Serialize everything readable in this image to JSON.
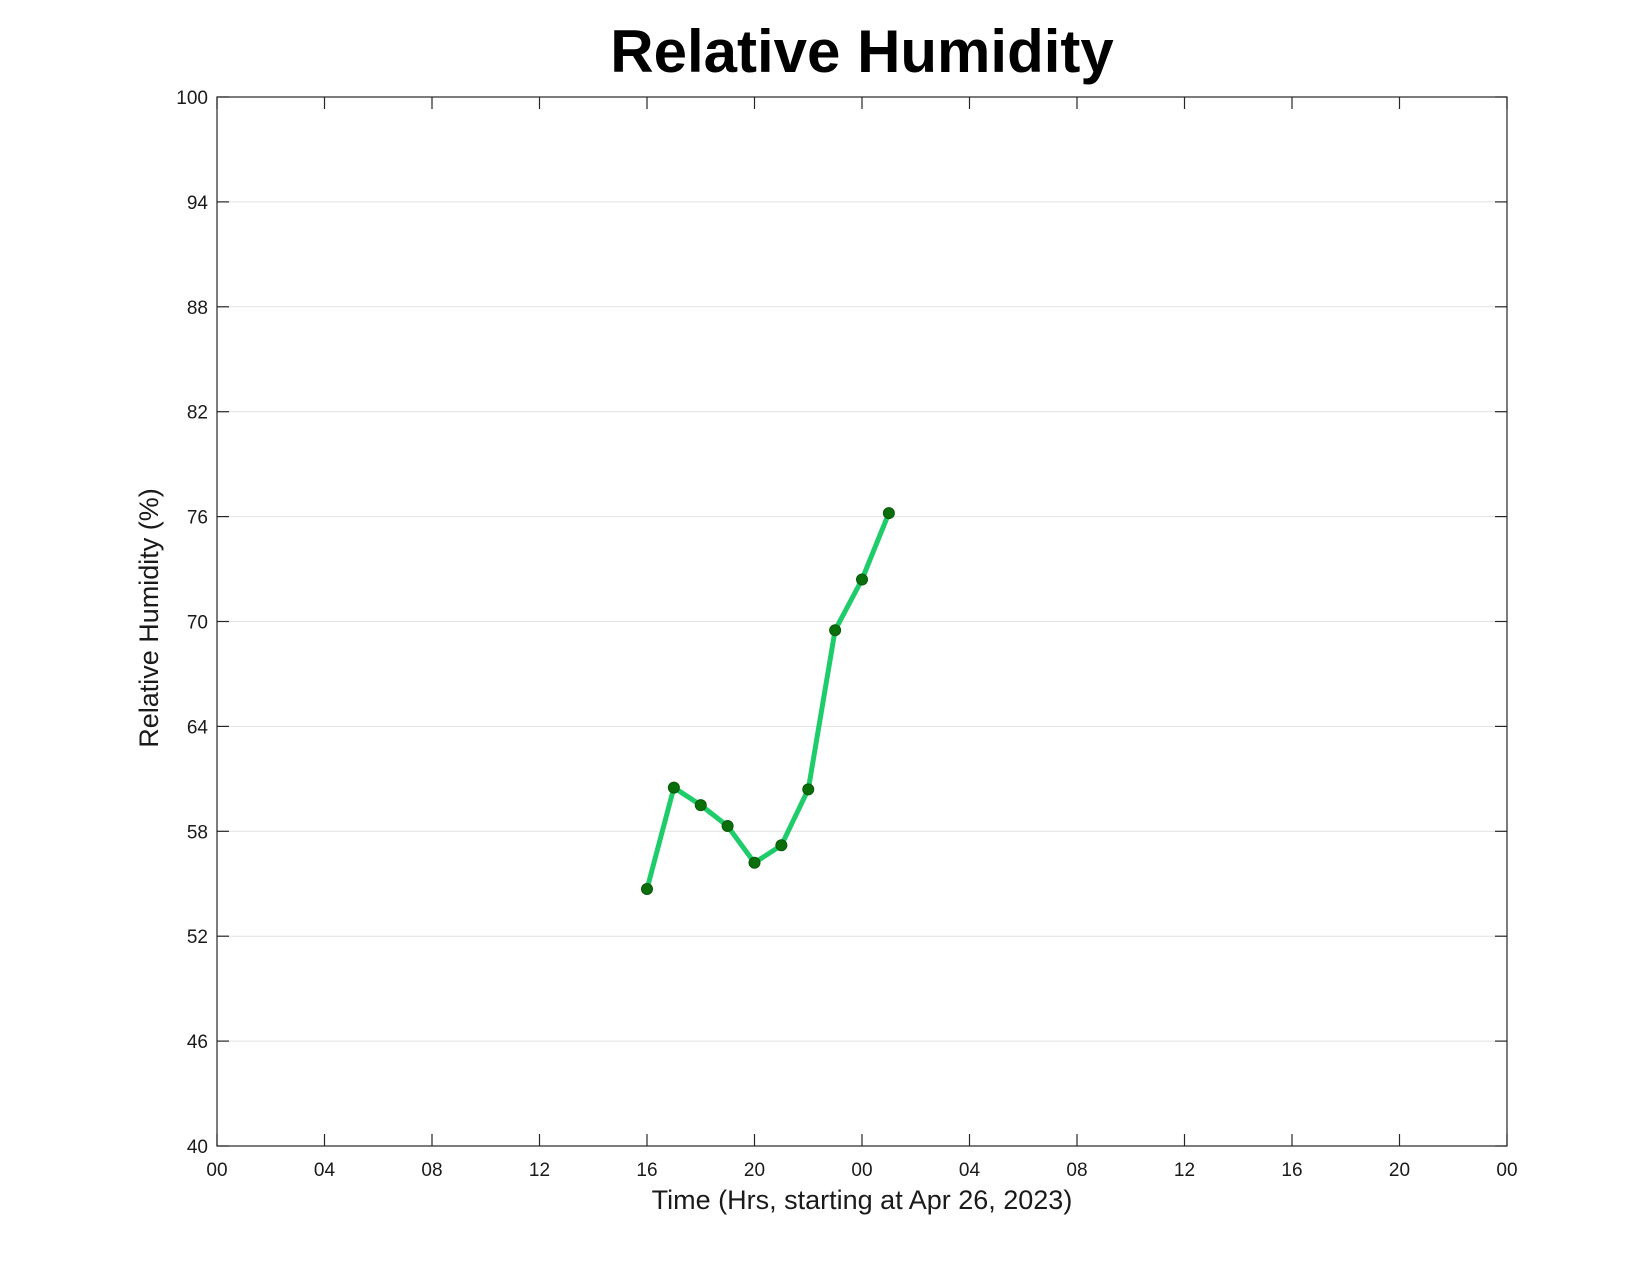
{
  "chart_data": {
    "type": "line",
    "title": "Relative Humidity",
    "xlabel": "Time (Hrs, starting at Apr 26, 2023)",
    "ylabel": "Relative Humidity (%)",
    "x_tick_labels": [
      "00",
      "04",
      "08",
      "12",
      "16",
      "20",
      "00",
      "04",
      "08",
      "12",
      "16",
      "20",
      "00"
    ],
    "x_tick_hours": [
      0,
      4,
      8,
      12,
      16,
      20,
      24,
      28,
      32,
      36,
      40,
      44,
      48
    ],
    "y_tick_labels": [
      "40",
      "46",
      "52",
      "58",
      "64",
      "70",
      "76",
      "82",
      "88",
      "94",
      "100"
    ],
    "y_ticks": [
      40,
      46,
      52,
      58,
      64,
      70,
      76,
      82,
      88,
      94,
      100
    ],
    "xlim": [
      0,
      48
    ],
    "ylim": [
      40,
      100
    ],
    "grid": "horizontal",
    "series": [
      {
        "x": [
          16,
          17,
          18,
          19,
          20,
          21,
          22,
          23,
          24,
          25
        ],
        "y": [
          54.7,
          60.5,
          59.5,
          58.3,
          56.2,
          57.2,
          60.4,
          69.5,
          72.4,
          76.2
        ],
        "line_color": "#1fcc6a",
        "marker_color": "#0a6e0a"
      }
    ]
  }
}
